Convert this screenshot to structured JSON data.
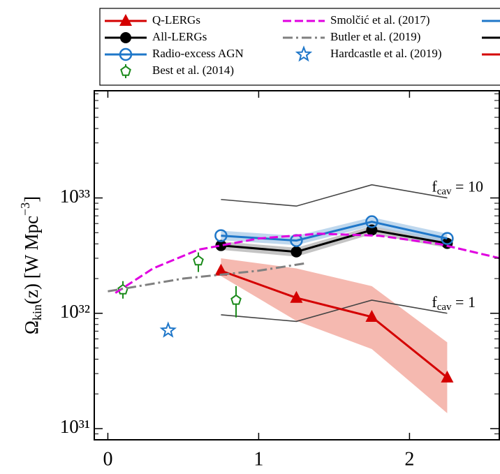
{
  "chart_data": {
    "type": "line",
    "ylabel": [
      "Ω",
      "kin",
      "(z) [W Mpc",
      "−3",
      "]"
    ],
    "xlim": [
      -0.09,
      2.6
    ],
    "ylim": [
      8e+30,
      8.5e+33
    ],
    "log_y": true,
    "xticks": [
      0,
      1,
      2
    ],
    "yticks": [
      {
        "value": 1e+31,
        "label": "10³¹"
      },
      {
        "value": 1e+32,
        "label": "10³²"
      },
      {
        "value": 1e+33,
        "label": "10³³"
      }
    ],
    "series": [
      {
        "name": "Q-LERGs",
        "color": "#d40000",
        "band_color": "#f2a196",
        "marker": "triangle",
        "linestyle": "solid",
        "x": [
          0.75,
          1.25,
          1.75,
          2.25
        ],
        "values": [
          2.34e+32,
          1.36e+32,
          9.3e+31,
          2.77e+31
        ],
        "band_lower": [
          2.1e+32,
          8.6e+31,
          4.9e+31,
          1.36e+31
        ],
        "band_upper": [
          3e+32,
          2.45e+32,
          1.72e+32,
          5.6e+31
        ]
      },
      {
        "name": "All-LERGs",
        "color": "#000000",
        "band_color": "#b0b0b0",
        "marker": "circle",
        "linestyle": "solid",
        "x": [
          0.75,
          1.25,
          1.75,
          2.25
        ],
        "values": [
          3.87e+32,
          3.41e+32,
          5.27e+32,
          4.04e+32
        ],
        "band_lower": [
          3.55e+32,
          3.1e+32,
          4.85e+32,
          3.7e+32
        ],
        "band_upper": [
          4.2e+32,
          3.7e+32,
          5.7e+32,
          4.4e+32
        ]
      },
      {
        "name": "Radio-excess AGN",
        "color": "#1f77c9",
        "band_color": "#a9cbe8",
        "marker": "open-circle",
        "linestyle": "solid",
        "x": [
          0.75,
          1.25,
          1.75,
          2.25
        ],
        "values": [
          4.71e+32,
          4.27e+32,
          6.22e+32,
          4.45e+32
        ],
        "band_lower": [
          4.3e+32,
          3.9e+32,
          5.7e+32,
          4.05e+32
        ],
        "band_upper": [
          5.2e+32,
          4.7e+32,
          6.8e+32,
          4.9e+32
        ]
      },
      {
        "name": "Best et al. (2014)",
        "color": "#1a8a1a",
        "marker": "pentagon",
        "linestyle": "none",
        "x": [
          0.1,
          0.6,
          0.85
        ],
        "values": [
          1.6e+32,
          2.85e+32,
          1.3e+32
        ],
        "err_lower": [
          1.34e+32,
          2.28e+32,
          9.2e+31
        ],
        "err_upper": [
          1.9e+32,
          3.37e+32,
          1.72e+32
        ]
      },
      {
        "name": "Smolčić et al. (2017)",
        "color": "#e000e0",
        "marker": "none",
        "linestyle": "dashed",
        "x": [
          0.05,
          0.3,
          0.6,
          1.0,
          1.4,
          1.8,
          2.2,
          2.6
        ],
        "values": [
          1.5e+32,
          2.45e+32,
          3.56e+32,
          4.45e+32,
          4.9e+32,
          4.7e+32,
          3.98e+32,
          3e+32
        ]
      },
      {
        "name": "Butler et al. (2019)",
        "color": "#808080",
        "marker": "none",
        "linestyle": "dashdot",
        "x": [
          0.0,
          0.5,
          1.0,
          1.3
        ],
        "values": [
          1.55e+32,
          2e+32,
          2.34e+32,
          2.7e+32
        ]
      },
      {
        "name": "Hardcastle et al. (2019)",
        "color": "#1f77c9",
        "marker": "star",
        "linestyle": "none",
        "x": [
          0.4
        ],
        "values": [
          7.1e+31
        ]
      }
    ],
    "reference_lines": [
      {
        "label": [
          "f",
          "cav",
          " = 10"
        ],
        "color": "#444444",
        "x": [
          0.75,
          1.25,
          1.75,
          2.25
        ],
        "values": [
          9.7e+32,
          8.5e+32,
          1.3e+33,
          1e+33
        ]
      },
      {
        "label": [
          "f",
          "cav",
          " = 1"
        ],
        "color": "#444444",
        "x": [
          0.75,
          1.25,
          1.75,
          2.25
        ],
        "values": [
          9.7e+31,
          8.5e+31,
          1.3e+32,
          1e+32
        ]
      }
    ]
  }
}
